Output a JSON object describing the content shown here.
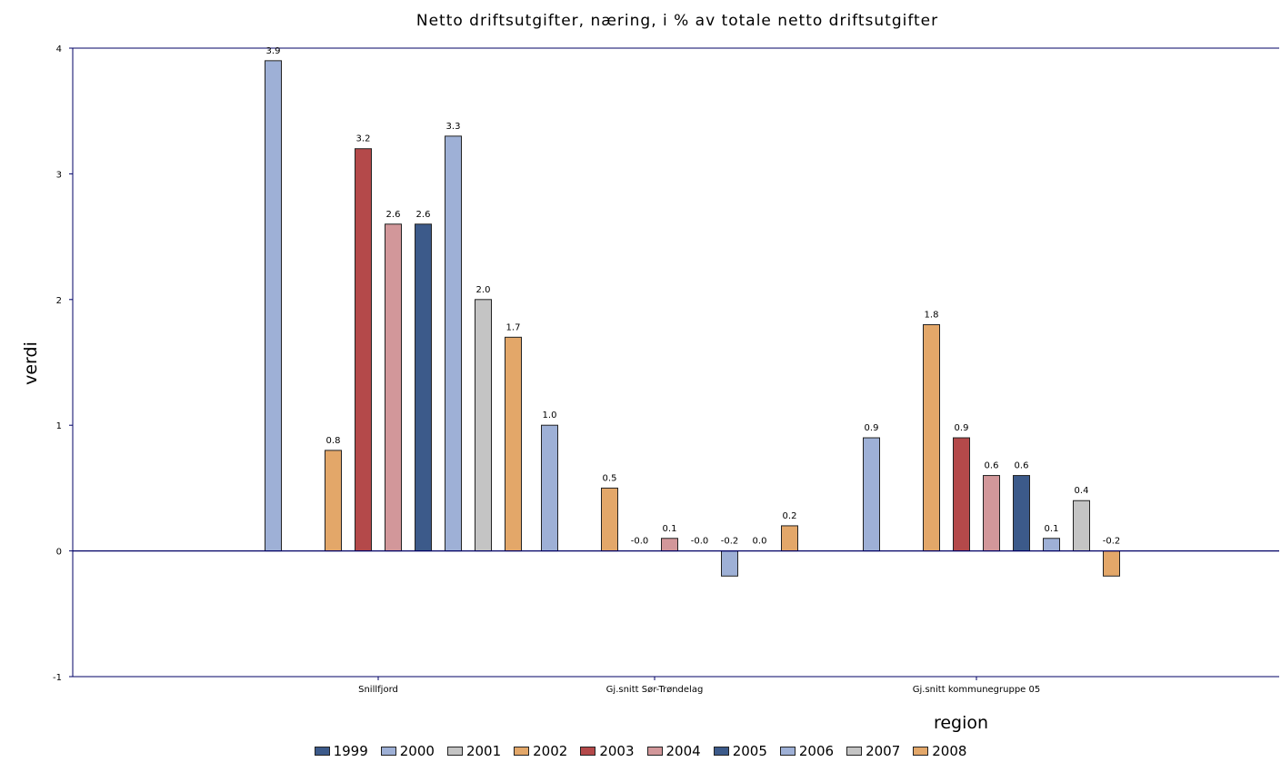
{
  "chart_data": {
    "type": "bar",
    "title": "Netto driftsutgifter, næring, i % av totale netto driftsutgifter",
    "xlabel": "region",
    "ylabel": "verdi",
    "ylim": [
      -1,
      4
    ],
    "yticks": [
      "4",
      "3",
      "2",
      "1",
      "0",
      "-1"
    ],
    "yticks_values": [
      4,
      3,
      2,
      1,
      0,
      -1
    ],
    "grid": false,
    "legend_position": "bottom",
    "categories": [
      "Snillfjord",
      "Gj.snitt Sør-Trøndelag",
      "Gj.snitt kommunegruppe 05"
    ],
    "series": [
      {
        "name": "1999",
        "color": "#3c5a8a",
        "values": [
          null,
          null,
          null
        ],
        "labels": [
          "",
          "",
          ""
        ]
      },
      {
        "name": "2000",
        "color": "#9eb0d6",
        "values": [
          3.9,
          1.0,
          0.9
        ],
        "labels": [
          "3.9",
          "1.0",
          "0.9"
        ]
      },
      {
        "name": "2001",
        "color": "#c4c4c4",
        "values": [
          null,
          null,
          null
        ],
        "labels": [
          "",
          "",
          ""
        ]
      },
      {
        "name": "2002",
        "color": "#e3a769",
        "values": [
          0.8,
          0.5,
          1.8
        ],
        "labels": [
          "0.8",
          "0.5",
          "1.8"
        ]
      },
      {
        "name": "2003",
        "color": "#b4494a",
        "values": [
          3.2,
          0.0,
          0.9
        ],
        "labels": [
          "3.2",
          "-0.0",
          "0.9"
        ]
      },
      {
        "name": "2004",
        "color": "#d2979a",
        "values": [
          2.6,
          0.1,
          0.6
        ],
        "labels": [
          "2.6",
          "0.1",
          "0.6"
        ]
      },
      {
        "name": "2005",
        "color": "#3c5a8a",
        "values": [
          2.6,
          0.0,
          0.6
        ],
        "labels": [
          "2.6",
          "-0.0",
          "0.6"
        ]
      },
      {
        "name": "2006",
        "color": "#9eb0d6",
        "values": [
          3.3,
          -0.2,
          0.1
        ],
        "labels": [
          "3.3",
          "-0.2",
          "0.1"
        ]
      },
      {
        "name": "2007",
        "color": "#c4c4c4",
        "values": [
          2.0,
          0.0,
          0.4
        ],
        "labels": [
          "2.0",
          "0.0",
          "0.4"
        ]
      },
      {
        "name": "2008",
        "color": "#e3a769",
        "values": [
          1.7,
          0.2,
          -0.2
        ],
        "labels": [
          "1.7",
          "0.2",
          "-0.2"
        ]
      }
    ]
  }
}
